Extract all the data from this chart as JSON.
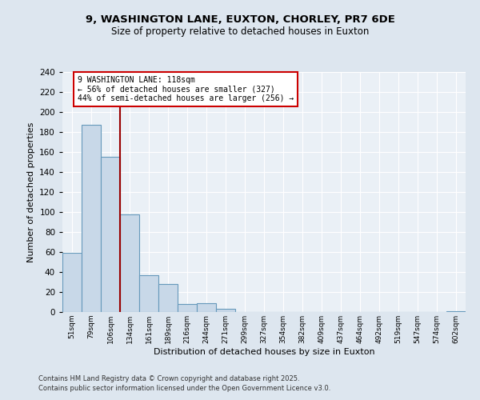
{
  "title1": "9, WASHINGTON LANE, EUXTON, CHORLEY, PR7 6DE",
  "title2": "Size of property relative to detached houses in Euxton",
  "xlabel": "Distribution of detached houses by size in Euxton",
  "ylabel": "Number of detached properties",
  "bar_labels": [
    "51sqm",
    "79sqm",
    "106sqm",
    "134sqm",
    "161sqm",
    "189sqm",
    "216sqm",
    "244sqm",
    "271sqm",
    "299sqm",
    "327sqm",
    "354sqm",
    "382sqm",
    "409sqm",
    "437sqm",
    "464sqm",
    "492sqm",
    "519sqm",
    "547sqm",
    "574sqm",
    "602sqm"
  ],
  "bar_values": [
    59,
    187,
    155,
    98,
    37,
    28,
    8,
    9,
    3,
    0,
    0,
    0,
    0,
    0,
    0,
    0,
    0,
    0,
    0,
    0,
    1
  ],
  "bar_color": "#c8d8e8",
  "bar_edge_color": "#6699bb",
  "ylim": [
    0,
    240
  ],
  "yticks": [
    0,
    20,
    40,
    60,
    80,
    100,
    120,
    140,
    160,
    180,
    200,
    220,
    240
  ],
  "vline_color": "#990000",
  "annotation_text": "9 WASHINGTON LANE: 118sqm\n← 56% of detached houses are smaller (327)\n44% of semi-detached houses are larger (256) →",
  "annotation_box_color": "#ffffff",
  "annotation_box_edge": "#cc0000",
  "footer1": "Contains HM Land Registry data © Crown copyright and database right 2025.",
  "footer2": "Contains public sector information licensed under the Open Government Licence v3.0.",
  "bg_color": "#dde6ef",
  "plot_bg_color": "#eaf0f6"
}
